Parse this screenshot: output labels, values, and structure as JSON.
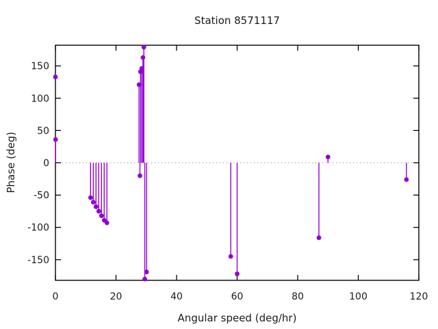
{
  "window": {
    "background": "#ffffff"
  },
  "chart_data": {
    "type": "stem",
    "title": "Station 8571117",
    "xlabel": "Angular speed (deg/hr)",
    "ylabel": "Phase (deg)",
    "xlim": [
      0,
      120
    ],
    "ylim": [
      -182,
      182
    ],
    "xticks": [
      0,
      20,
      40,
      60,
      80,
      100,
      120
    ],
    "yticks": [
      -150,
      -100,
      -50,
      0,
      50,
      100,
      150
    ],
    "grid": false,
    "legend": "none",
    "zero_line": {
      "show": true,
      "style": "dotted",
      "color": "#8c8c8c"
    },
    "series_color": "#9400d3",
    "axis_color": "#000000",
    "text_color": "#1a1a1a",
    "points": [
      {
        "x": 0,
        "y": 133,
        "stem_visible": false
      },
      {
        "x": 0.04,
        "y": 36
      },
      {
        "x": 11.6,
        "y": -54
      },
      {
        "x": 12.5,
        "y": -61
      },
      {
        "x": 13.4,
        "y": -68
      },
      {
        "x": 14.3,
        "y": -75
      },
      {
        "x": 15.2,
        "y": -82
      },
      {
        "x": 16.1,
        "y": -89
      },
      {
        "x": 17.0,
        "y": -93
      },
      {
        "x": 27.6,
        "y": 121
      },
      {
        "x": 27.9,
        "y": -20
      },
      {
        "x": 28.1,
        "y": 141
      },
      {
        "x": 28.5,
        "y": 146
      },
      {
        "x": 28.9,
        "y": 163
      },
      {
        "x": 29.2,
        "y": 179
      },
      {
        "x": 29.5,
        "y": -180
      },
      {
        "x": 30.1,
        "y": -169
      },
      {
        "x": 57.9,
        "y": -145
      },
      {
        "x": 60.0,
        "y": -172
      },
      {
        "x": 87.0,
        "y": -116
      },
      {
        "x": 90.0,
        "y": 9
      },
      {
        "x": 115.9,
        "y": -26
      }
    ]
  }
}
